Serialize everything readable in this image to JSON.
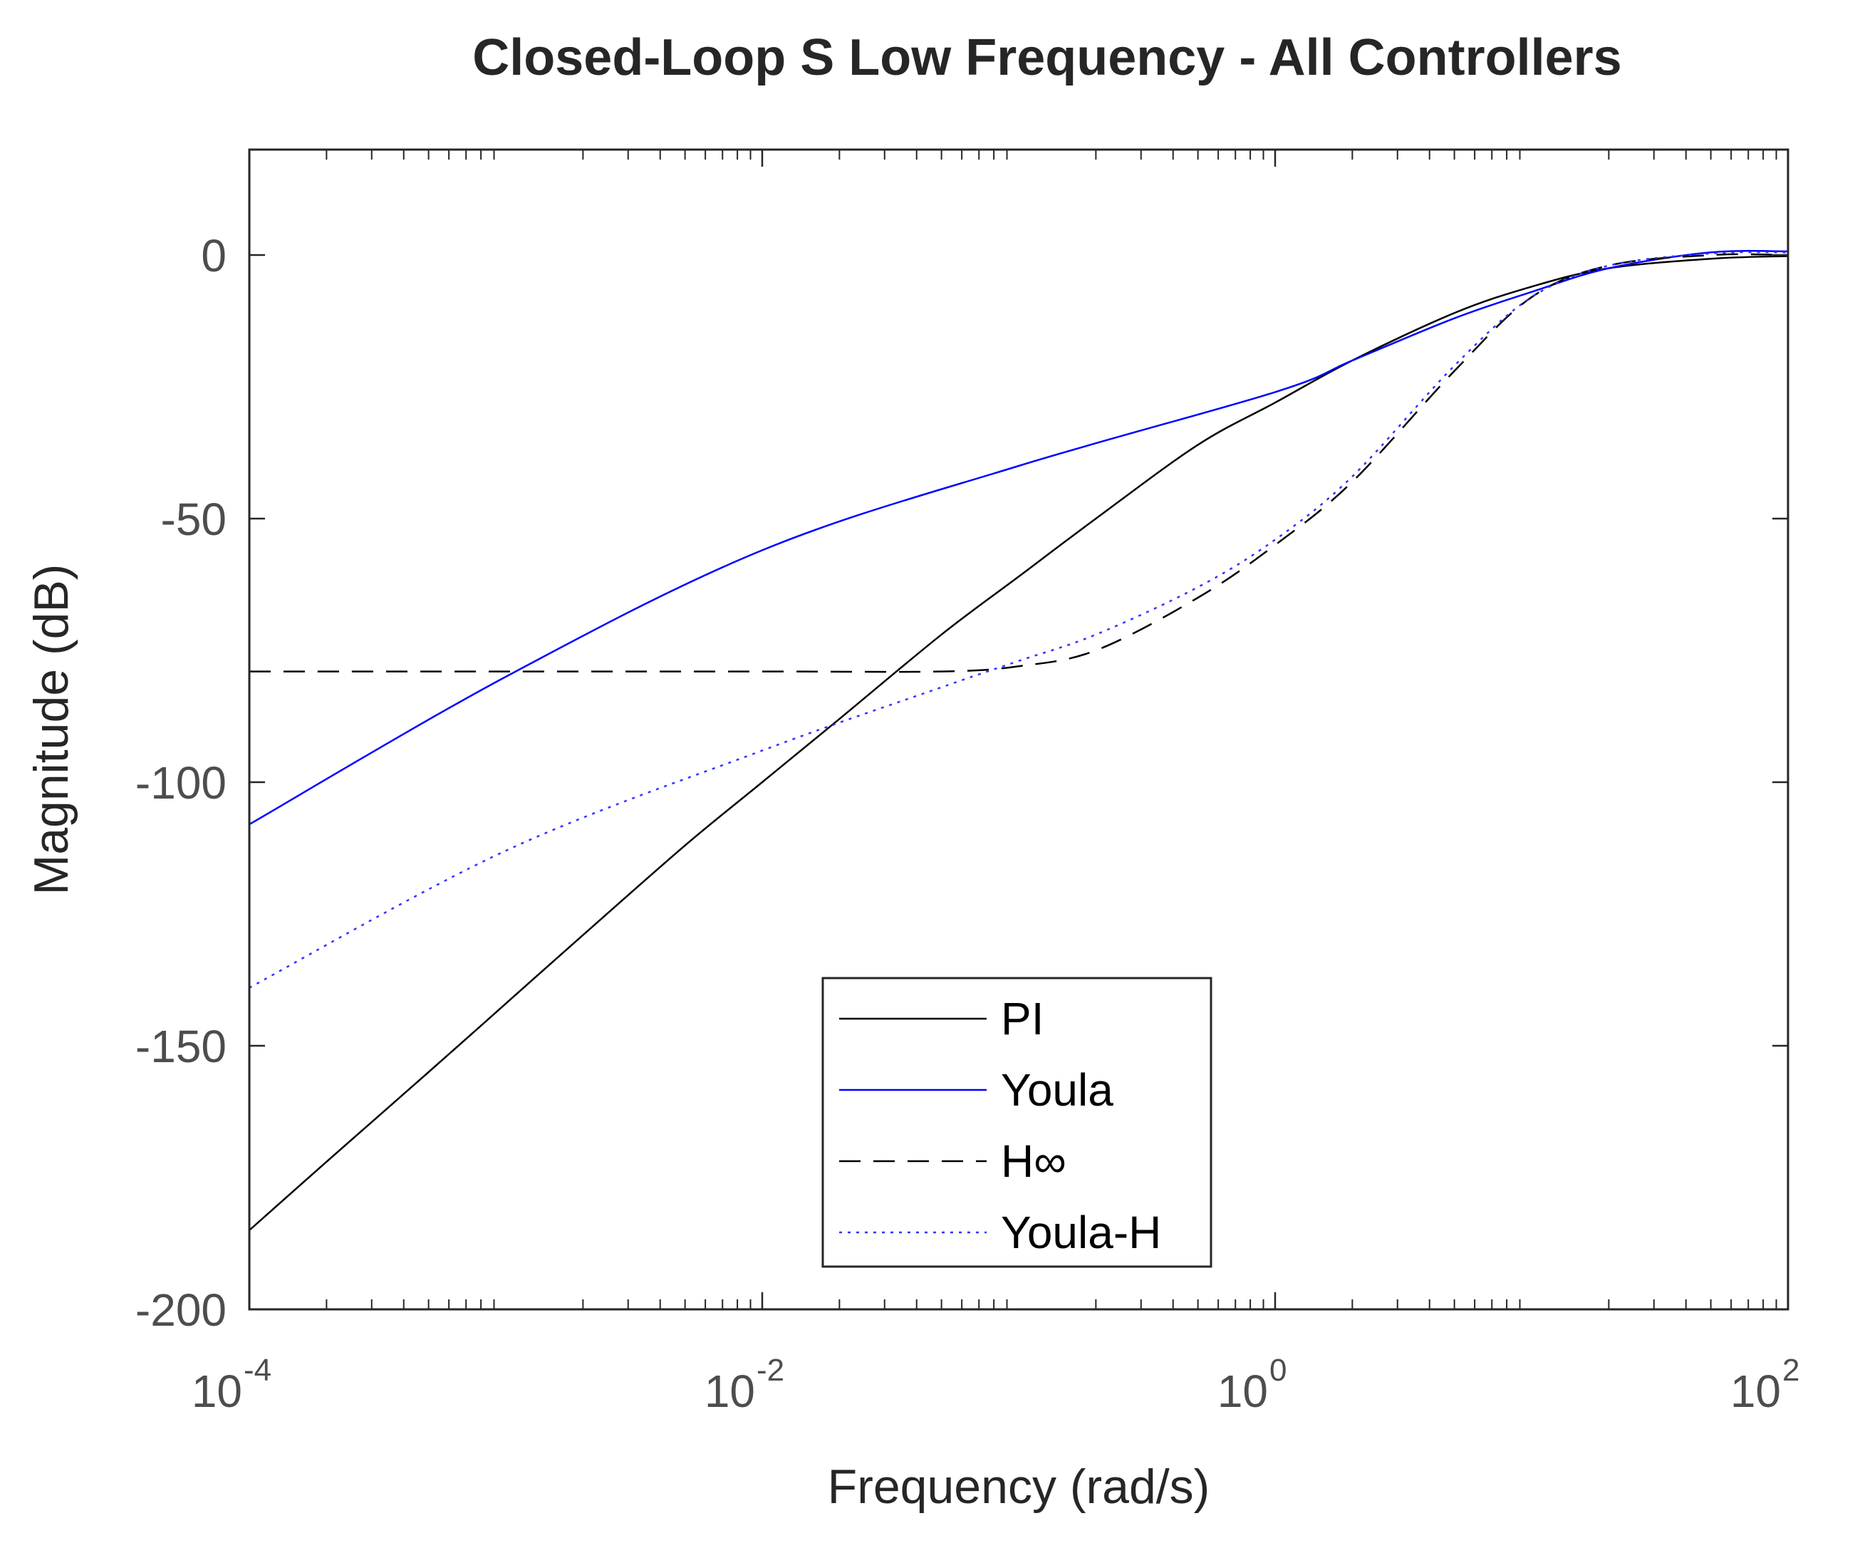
{
  "chart_data": {
    "type": "line",
    "title": "Closed-Loop S Low Frequency - All Controllers",
    "xlabel": "Frequency (rad/s)",
    "ylabel": "Magnitude (dB)",
    "xscale": "log",
    "xlim": [
      0.0001,
      100
    ],
    "ylim": [
      -200,
      20
    ],
    "x_ticks": [
      {
        "value": 0.0001,
        "base": "10",
        "exp": "-4"
      },
      {
        "value": 0.01,
        "base": "10",
        "exp": "-2"
      },
      {
        "value": 1,
        "base": "10",
        "exp": "0"
      },
      {
        "value": 100,
        "base": "10",
        "exp": "2"
      }
    ],
    "y_ticks": [
      {
        "value": 0,
        "label": "0"
      },
      {
        "value": -50,
        "label": "-50"
      },
      {
        "value": -100,
        "label": "-100"
      },
      {
        "value": -150,
        "label": "-150"
      },
      {
        "value": -200,
        "label": "-200"
      }
    ],
    "grid": false,
    "box": true,
    "legend_position": "bottom-center",
    "series": [
      {
        "name": "PI",
        "color": "#000000",
        "style": "solid",
        "x": [
          0.0001,
          0.0002,
          0.0005,
          0.001,
          0.002,
          0.005,
          0.01,
          0.02,
          0.05,
          0.1,
          0.2,
          0.5,
          1,
          2,
          5,
          10,
          20,
          50,
          100
        ],
        "y": [
          -185,
          -172,
          -155,
          -142,
          -129,
          -112,
          -100,
          -88,
          -72,
          -61,
          -50,
          -36,
          -28,
          -20,
          -11,
          -6,
          -2.5,
          -0.7,
          -0.2
        ]
      },
      {
        "name": "Youla",
        "color": "#0000ff",
        "style": "solid",
        "x": [
          0.0001,
          0.001,
          0.01,
          0.1,
          1,
          2,
          5,
          10,
          20,
          50,
          100
        ],
        "y": [
          -108,
          -80,
          -56,
          -40,
          -26,
          -20,
          -12,
          -7,
          -2.5,
          0.5,
          0.7
        ]
      },
      {
        "name": "H∞",
        "color": "#000000",
        "style": "dashed",
        "x": [
          0.0001,
          0.001,
          0.01,
          0.05,
          0.1,
          0.2,
          0.5,
          1,
          2,
          5,
          10,
          20,
          50,
          100
        ],
        "y": [
          -79,
          -79,
          -79,
          -79,
          -78,
          -75,
          -65,
          -55,
          -43,
          -22,
          -8,
          -2,
          0,
          0
        ]
      },
      {
        "name": "Youla-H",
        "color": "#3333ff",
        "style": "dotted",
        "x": [
          0.0001,
          0.001,
          0.01,
          0.05,
          0.1,
          0.2,
          0.5,
          1,
          2,
          5,
          10,
          20,
          50,
          100
        ],
        "y": [
          -139,
          -113,
          -94,
          -82,
          -77,
          -72,
          -63,
          -54,
          -42,
          -21,
          -8,
          -2,
          0.3,
          0.5
        ]
      }
    ]
  }
}
